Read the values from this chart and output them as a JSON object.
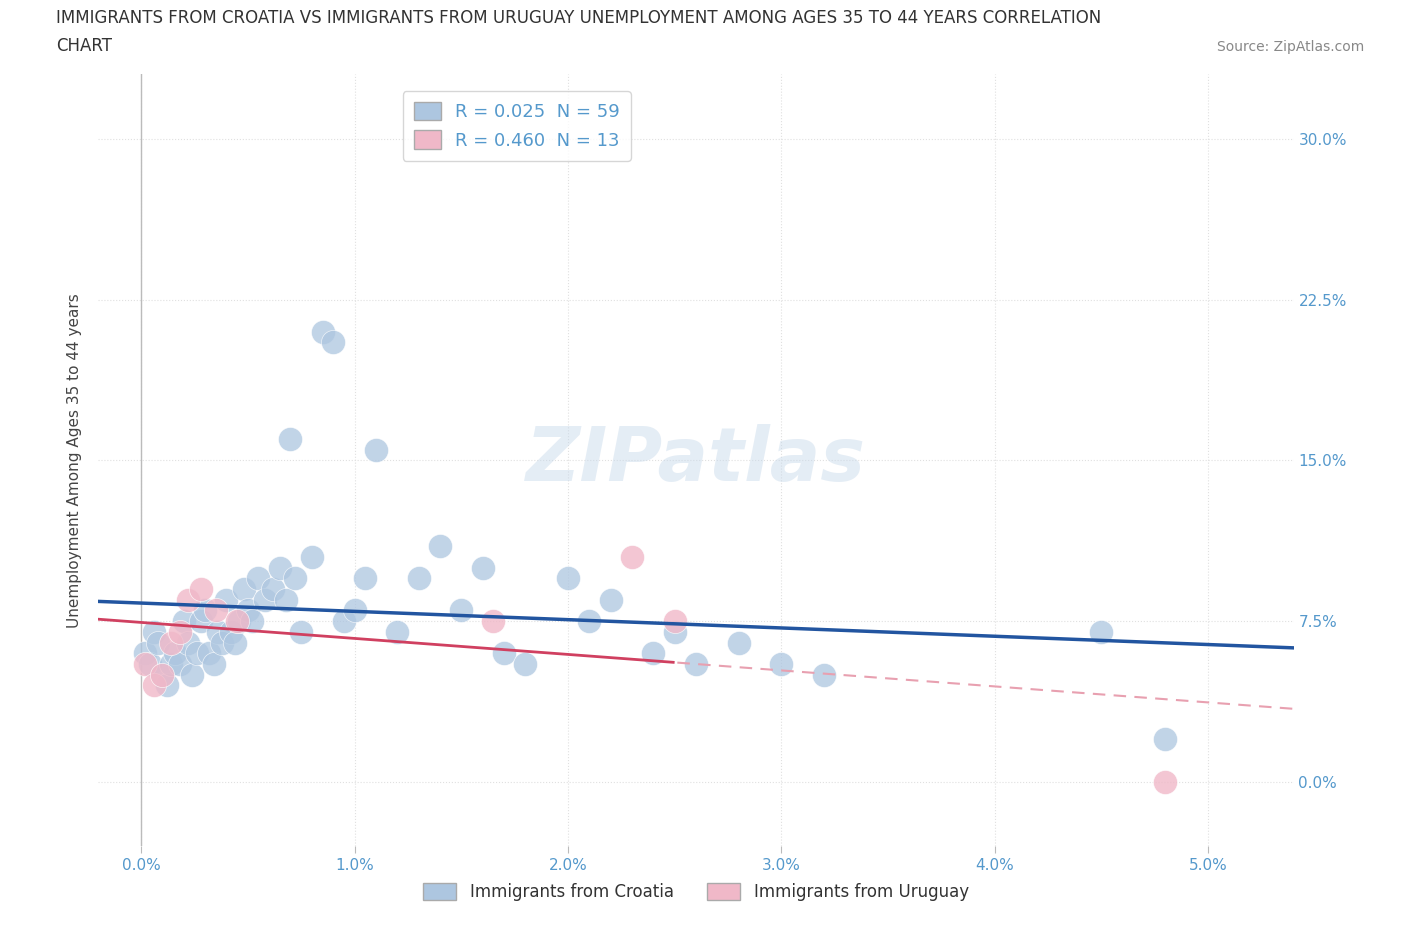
{
  "title_line1": "IMMIGRANTS FROM CROATIA VS IMMIGRANTS FROM URUGUAY UNEMPLOYMENT AMONG AGES 35 TO 44 YEARS CORRELATION",
  "title_line2": "CHART",
  "source": "Source: ZipAtlas.com",
  "ylabel": "Unemployment Among Ages 35 to 44 years",
  "x_tick_vals": [
    0.0,
    1.0,
    2.0,
    3.0,
    4.0,
    5.0
  ],
  "x_tick_labels": [
    "0.0%",
    "1.0%",
    "2.0%",
    "3.0%",
    "4.0%",
    "5.0%"
  ],
  "y_tick_vals": [
    0.0,
    7.5,
    15.0,
    22.5,
    30.0
  ],
  "y_tick_labels": [
    "0.0%",
    "7.5%",
    "15.0%",
    "22.5%",
    "30.0%"
  ],
  "xlim": [
    -0.2,
    5.4
  ],
  "ylim": [
    -3.0,
    33.0
  ],
  "croatia_R": 0.025,
  "croatia_N": 59,
  "uruguay_R": 0.46,
  "uruguay_N": 13,
  "croatia_color": "#adc6e0",
  "croatia_line_color": "#2255a0",
  "uruguay_color": "#f0b8c8",
  "uruguay_line_color": "#d04060",
  "uruguay_dashed_color": "#e8a0b0",
  "tick_color": "#5599cc",
  "grid_color": "#e0e0e0",
  "background_color": "#ffffff",
  "watermark": "ZIPatlas",
  "legend_croatia_label": "Immigrants from Croatia",
  "legend_uruguay_label": "Immigrants from Uruguay",
  "croatia_x": [
    0.02,
    0.04,
    0.06,
    0.08,
    0.1,
    0.12,
    0.14,
    0.16,
    0.18,
    0.2,
    0.22,
    0.24,
    0.26,
    0.28,
    0.3,
    0.32,
    0.34,
    0.36,
    0.38,
    0.4,
    0.42,
    0.44,
    0.46,
    0.48,
    0.5,
    0.52,
    0.55,
    0.58,
    0.62,
    0.65,
    0.68,
    0.7,
    0.72,
    0.75,
    0.8,
    0.85,
    0.9,
    0.95,
    1.0,
    1.05,
    1.1,
    1.2,
    1.3,
    1.4,
    1.5,
    1.6,
    1.7,
    1.8,
    2.0,
    2.1,
    2.2,
    2.4,
    2.5,
    2.6,
    2.8,
    3.0,
    3.2,
    4.5,
    4.8
  ],
  "croatia_y": [
    6.0,
    5.5,
    7.0,
    6.5,
    5.0,
    4.5,
    5.5,
    6.0,
    5.5,
    7.5,
    6.5,
    5.0,
    6.0,
    7.5,
    8.0,
    6.0,
    5.5,
    7.0,
    6.5,
    8.5,
    7.0,
    6.5,
    7.5,
    9.0,
    8.0,
    7.5,
    9.5,
    8.5,
    9.0,
    10.0,
    8.5,
    16.0,
    9.5,
    7.0,
    10.5,
    21.0,
    20.5,
    7.5,
    8.0,
    9.5,
    15.5,
    7.0,
    9.5,
    11.0,
    8.0,
    10.0,
    6.0,
    5.5,
    9.5,
    7.5,
    8.5,
    6.0,
    7.0,
    5.5,
    6.5,
    5.5,
    5.0,
    7.0,
    2.0
  ],
  "uruguay_x": [
    0.02,
    0.06,
    0.1,
    0.14,
    0.18,
    0.22,
    0.28,
    0.35,
    0.45,
    1.65,
    2.3,
    2.5,
    4.8
  ],
  "uruguay_y": [
    5.5,
    4.5,
    5.0,
    6.5,
    7.0,
    8.5,
    9.0,
    8.0,
    7.5,
    7.5,
    10.5,
    7.5,
    0.0
  ]
}
